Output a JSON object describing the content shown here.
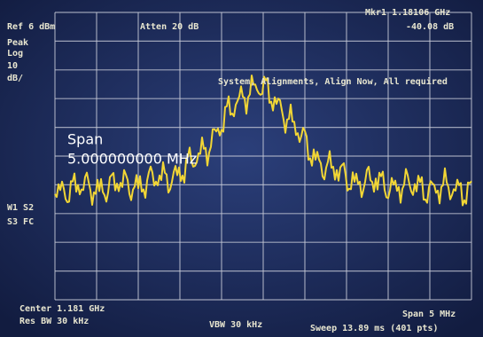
{
  "header": {
    "ref": "Ref 6 dBm",
    "atten": "Atten 20 dB",
    "marker": "Mkr1 1.18106 GHz",
    "marker_level": "-40.08 dB"
  },
  "left_panel": {
    "detector": "Peak",
    "scale": "Log",
    "scale_value": "10",
    "scale_unit": "dB/",
    "trace_flags_1": "W1 S2",
    "trace_flags_2": "S3 FC"
  },
  "message": "System, Alignments, Align Now, All required",
  "span_entry": {
    "label": "Span",
    "value": "5.000000000 MHz"
  },
  "footer": {
    "center": "Center 1.181 GHz",
    "res_bw": "Res BW 30 kHz",
    "vbw": "VBW 30 kHz",
    "sweep": "Sweep 13.89 ms (401 pts)",
    "span": "Span 5 MHz"
  }
}
